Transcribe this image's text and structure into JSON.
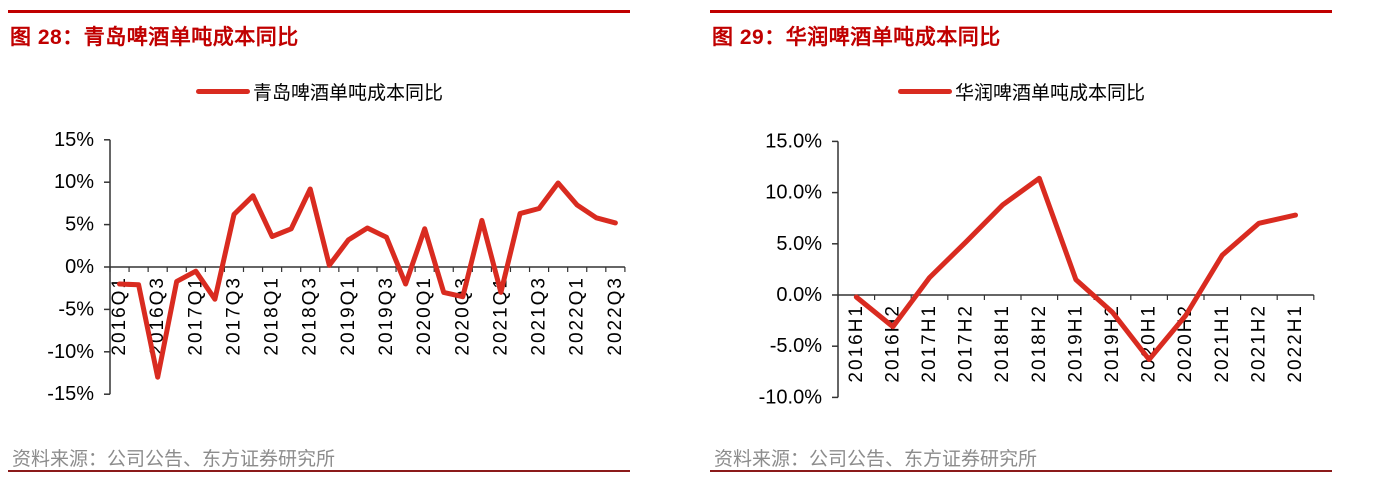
{
  "colors": {
    "accent_red": "#c00000",
    "series_red": "#d92b20",
    "axis_color": "#333333",
    "source_gray": "#8c8c8c",
    "bottom_rule_red": "#8b1a1a"
  },
  "figures": [
    {
      "source_note": "资料来源：公司公告、东方证券研究所"
    },
    {
      "source_note": "资料来源：公司公告、东方证券研究所"
    }
  ],
  "chart_data": [
    {
      "type": "line",
      "title": "图 28：青岛啤酒单吨成本同比",
      "legend": "青岛啤酒单吨成本同比",
      "series_name": "青岛啤酒单吨成本同比",
      "unit": "%",
      "categories": [
        "2016Q1",
        "2016Q2",
        "2016Q3",
        "2016Q4",
        "2017Q1",
        "2017Q2",
        "2017Q3",
        "2017Q4",
        "2018Q1",
        "2018Q2",
        "2018Q3",
        "2018Q4",
        "2019Q1",
        "2019Q2",
        "2019Q3",
        "2019Q4",
        "2020Q1",
        "2020Q2",
        "2020Q3",
        "2020Q4",
        "2021Q1",
        "2021Q2",
        "2021Q3",
        "2021Q4",
        "2022Q1",
        "2022Q2",
        "2022Q3"
      ],
      "values": [
        -2.0,
        -2.1,
        -13.0,
        -1.7,
        -0.5,
        -3.8,
        6.2,
        8.4,
        3.6,
        4.5,
        9.2,
        0.2,
        3.2,
        4.6,
        3.5,
        -2.0,
        4.5,
        -3.0,
        -3.5,
        5.5,
        -3.0,
        6.3,
        6.9,
        9.9,
        7.3,
        5.8,
        5.2
      ],
      "x_label_every": 2,
      "x_tick_labels_shown": [
        "2016Q1",
        "2016Q3",
        "2017Q1",
        "2017Q3",
        "2018Q1",
        "2018Q3",
        "2019Q1",
        "2019Q3",
        "2020Q1",
        "2020Q3",
        "2021Q1",
        "2021Q3",
        "2022Q1",
        "2022Q3"
      ],
      "y_ticks": {
        "values": [
          15,
          10,
          5,
          0,
          -5,
          -10,
          -15
        ],
        "labels": [
          "15%",
          "10%",
          "5%",
          "0%",
          "-5%",
          "-10%",
          "-15%"
        ]
      },
      "ylim": [
        -15,
        15
      ],
      "grid": false,
      "legend_position": "top"
    },
    {
      "type": "line",
      "title": "图 29：华润啤酒单吨成本同比",
      "legend": "华润啤酒单吨成本同比",
      "series_name": "华润啤酒单吨成本同比",
      "unit": "%",
      "categories": [
        "2016H1",
        "2016H2",
        "2017H1",
        "2017H2",
        "2018H1",
        "2018H2",
        "2019H1",
        "2019H2",
        "2020H1",
        "2020H2",
        "2021H1",
        "2021H2",
        "2022H1"
      ],
      "values": [
        -0.2,
        -3.1,
        1.7,
        5.2,
        8.8,
        11.4,
        1.5,
        -1.7,
        -6.3,
        -2.0,
        3.9,
        7.0,
        7.8
      ],
      "x_label_every": 1,
      "x_tick_labels_shown": [
        "2016H1",
        "2016H2",
        "2017H1",
        "2017H2",
        "2018H1",
        "2018H2",
        "2019H1",
        "2019H2",
        "2020H1",
        "2020H2",
        "2021H1",
        "2021H2",
        "2022H1"
      ],
      "y_ticks": {
        "values": [
          15,
          10,
          5,
          0,
          -5,
          -10
        ],
        "labels": [
          "15.0%",
          "10.0%",
          "5.0%",
          "0.0%",
          "-5.0%",
          "-10.0%"
        ]
      },
      "ylim": [
        -10,
        15
      ],
      "grid": false,
      "legend_position": "top"
    }
  ]
}
